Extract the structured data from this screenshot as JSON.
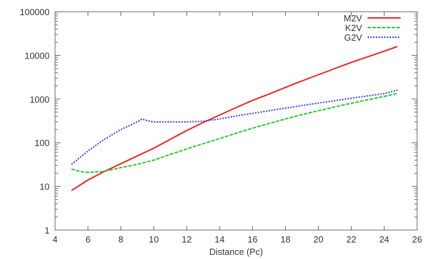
{
  "chart_data": {
    "type": "line",
    "title": "",
    "xlabel": "Distance (Pc)",
    "ylabel": "",
    "xlim": [
      4,
      26
    ],
    "ylim": [
      1,
      100000
    ],
    "yscale": "log",
    "xticks": [
      "4",
      "6",
      "8",
      "10",
      "12",
      "14",
      "16",
      "18",
      "20",
      "22",
      "24",
      "26"
    ],
    "yticks": [
      "1",
      "10",
      "100",
      "1000",
      "10000",
      "100000"
    ],
    "grid": false,
    "legend": "top-right",
    "series": [
      {
        "name": "M2V",
        "color": "#ee2222",
        "dash": "solid",
        "x": [
          5,
          6,
          7,
          8,
          9,
          10,
          11,
          12,
          13,
          14,
          15,
          16,
          17,
          18,
          19,
          20,
          21,
          22,
          23,
          24,
          24.8
        ],
        "y": [
          8,
          14,
          22,
          33,
          50,
          75,
          120,
          190,
          290,
          430,
          640,
          930,
          1300,
          1850,
          2600,
          3600,
          5000,
          6900,
          9300,
          12500,
          16000
        ]
      },
      {
        "name": "K2V",
        "color": "#22cc22",
        "dash": "dash",
        "x": [
          5,
          5.5,
          6,
          7,
          8,
          9,
          10,
          11,
          12,
          13,
          14,
          15,
          16,
          17,
          18,
          19,
          20,
          21,
          22,
          23,
          24,
          24.8
        ],
        "y": [
          25,
          22,
          21,
          22,
          27,
          32,
          40,
          54,
          72,
          95,
          125,
          165,
          215,
          275,
          350,
          440,
          540,
          660,
          800,
          960,
          1150,
          1350
        ]
      },
      {
        "name": "G2V",
        "color": "#3333ee",
        "dash": "dot",
        "x": [
          5,
          6,
          7,
          8,
          9,
          9.3,
          9.6,
          10,
          11,
          12,
          13,
          14,
          15,
          16,
          17,
          18,
          19,
          20,
          21,
          22,
          23,
          24,
          24.8
        ],
        "y": [
          32,
          65,
          120,
          200,
          300,
          350,
          320,
          300,
          300,
          300,
          310,
          350,
          410,
          470,
          540,
          620,
          710,
          810,
          920,
          1050,
          1180,
          1330,
          1600
        ]
      }
    ]
  }
}
